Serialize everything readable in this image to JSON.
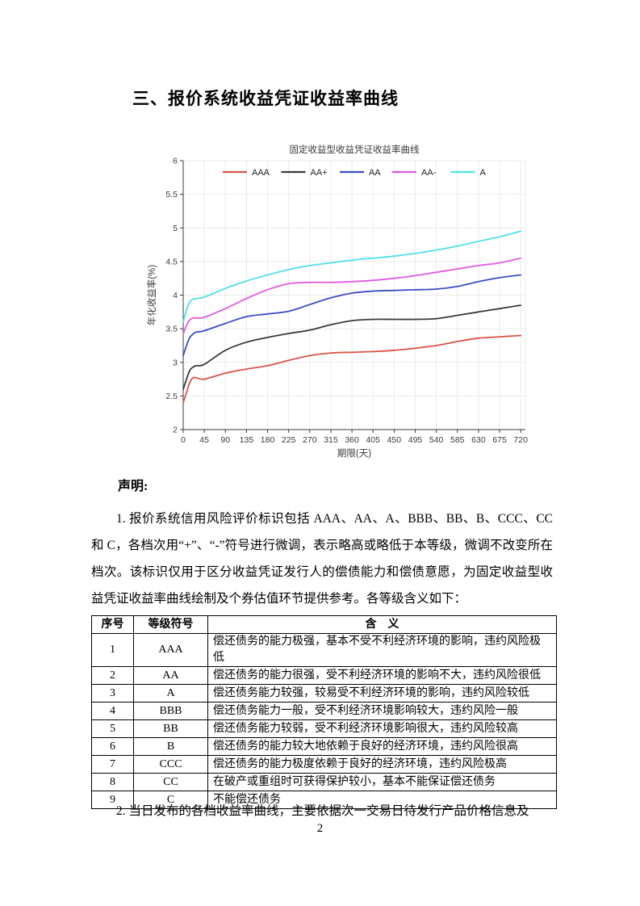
{
  "page": {
    "number": "2"
  },
  "heading": "三、报价系统收益凭证收益率曲线",
  "statement": {
    "label": "声明:",
    "para1": "1. 报价系统信用风险评价标识包括 AAA、AA、A、BBB、BB、B、CCC、CC 和 C，各档次用“+”、“-”符号进行微调，表示略高或略低于本等级，微调不改变所在档次。该标识仅用于区分收益凭证发行人的偿债能力和偿债意愿，为固定收益型收益凭证收益率曲线绘制及个券估值环节提供参考。各等级含义如下：",
    "para2": "2. 当日发布的各档收益率曲线，主要依据次一交易日待发行产品价格信息及"
  },
  "table": {
    "headers": [
      "序号",
      "等级符号",
      "含　义"
    ],
    "rows": [
      [
        "1",
        "AAA",
        "偿还债务的能力极强，基本不受不利经济环境的影响，违约风险极低"
      ],
      [
        "2",
        "AA",
        "偿还债务的能力很强，受不利经济环境的影响不大，违约风险很低"
      ],
      [
        "3",
        "A",
        "偿还债务能力较强，较易受不利经济环境的影响，违约风险较低"
      ],
      [
        "4",
        "BBB",
        "偿还债务能力一般，受不利经济环境影响较大，违约风险一般"
      ],
      [
        "5",
        "BB",
        "偿还债务能力较弱，受不利经济环境影响很大，违约风险较高"
      ],
      [
        "6",
        "B",
        "偿还债务的能力较大地依赖于良好的经济环境，违约风险很高"
      ],
      [
        "7",
        "CCC",
        "偿还债务的能力极度依赖于良好的经济环境，违约风险极高"
      ],
      [
        "8",
        "CC",
        "在破产或重组时可获得保护较小，基本不能保证偿还债务"
      ],
      [
        "9",
        "C",
        "不能偿还债务"
      ]
    ]
  },
  "chart_data": {
    "type": "line",
    "title": "固定收益型收益凭证收益率曲线",
    "xlabel": "期限(天)",
    "ylabel": "年化收益率(%)",
    "xlim": [
      0,
      730
    ],
    "ylim": [
      2,
      6
    ],
    "xticks": [
      0,
      45,
      90,
      135,
      180,
      225,
      270,
      315,
      360,
      405,
      450,
      495,
      540,
      585,
      630,
      675,
      720
    ],
    "yticks": [
      2,
      2.5,
      3,
      3.5,
      4,
      4.5,
      5,
      5.5,
      6
    ],
    "grid": true,
    "legend_position": "top-inside",
    "x": [
      0,
      7,
      14,
      21,
      28,
      45,
      90,
      135,
      180,
      225,
      270,
      315,
      360,
      405,
      450,
      495,
      540,
      585,
      630,
      675,
      720
    ],
    "series": [
      {
        "name": "AAA",
        "color": "#d9534a",
        "values": [
          2.4,
          2.55,
          2.7,
          2.77,
          2.77,
          2.75,
          2.84,
          2.9,
          2.95,
          3.03,
          3.1,
          3.14,
          3.15,
          3.16,
          3.18,
          3.21,
          3.25,
          3.31,
          3.36,
          3.38,
          3.4
        ]
      },
      {
        "name": "AA+",
        "color": "#3a3a3a",
        "values": [
          2.6,
          2.75,
          2.88,
          2.93,
          2.95,
          2.97,
          3.18,
          3.3,
          3.37,
          3.43,
          3.48,
          3.56,
          3.62,
          3.64,
          3.64,
          3.64,
          3.65,
          3.7,
          3.75,
          3.8,
          3.85
        ]
      },
      {
        "name": "AA",
        "color": "#3d4cc3",
        "values": [
          3.1,
          3.25,
          3.37,
          3.42,
          3.45,
          3.47,
          3.58,
          3.68,
          3.72,
          3.76,
          3.86,
          3.96,
          4.03,
          4.06,
          4.07,
          4.08,
          4.09,
          4.13,
          4.2,
          4.26,
          4.3
        ]
      },
      {
        "name": "AA-",
        "color": "#e159e1",
        "values": [
          3.42,
          3.55,
          3.63,
          3.66,
          3.66,
          3.67,
          3.8,
          3.95,
          4.08,
          4.17,
          4.19,
          4.19,
          4.2,
          4.22,
          4.25,
          4.29,
          4.34,
          4.39,
          4.44,
          4.48,
          4.55
        ]
      },
      {
        "name": "A",
        "color": "#52dee8",
        "values": [
          3.6,
          3.78,
          3.9,
          3.94,
          3.95,
          3.97,
          4.1,
          4.21,
          4.3,
          4.38,
          4.44,
          4.48,
          4.52,
          4.55,
          4.58,
          4.62,
          4.67,
          4.73,
          4.8,
          4.87,
          4.95
        ]
      }
    ],
    "colors": {
      "grid": "#ebebeb",
      "axis": "#3a3a3a",
      "tick_label": "#3a3a3a",
      "title": "#3a3a3a"
    }
  }
}
